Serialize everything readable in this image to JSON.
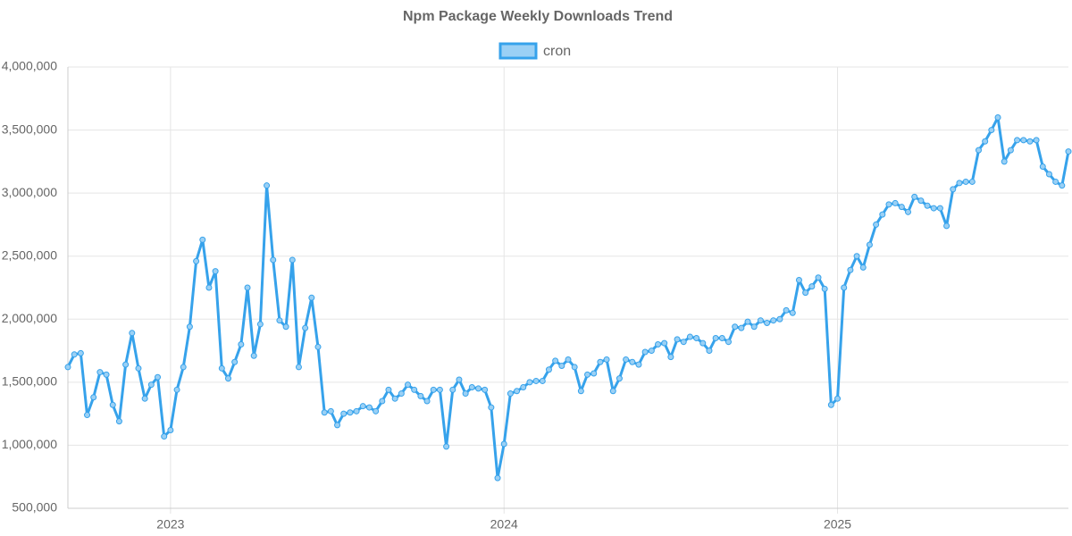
{
  "chart_data": {
    "type": "line",
    "title": "Npm Package Weekly Downloads Trend",
    "categories": [
      null,
      null,
      null,
      null,
      null,
      null,
      null,
      null,
      null,
      null,
      null,
      null,
      null,
      null,
      null,
      null,
      "2023",
      null,
      null,
      null,
      null,
      null,
      null,
      null,
      null,
      null,
      null,
      null,
      null,
      null,
      null,
      null,
      null,
      null,
      null,
      null,
      null,
      null,
      null,
      null,
      null,
      null,
      null,
      null,
      null,
      null,
      null,
      null,
      null,
      null,
      null,
      null,
      null,
      null,
      null,
      null,
      null,
      null,
      null,
      null,
      null,
      null,
      null,
      null,
      null,
      null,
      null,
      null,
      "2024",
      null,
      null,
      null,
      null,
      null,
      null,
      null,
      null,
      null,
      null,
      null,
      null,
      null,
      null,
      null,
      null,
      null,
      null,
      null,
      null,
      null,
      null,
      null,
      null,
      null,
      null,
      null,
      null,
      null,
      null,
      null,
      null,
      null,
      null,
      null,
      null,
      null,
      null,
      null,
      null,
      null,
      null,
      null,
      null,
      null,
      null,
      null,
      null,
      null,
      null,
      null,
      "2025",
      null,
      null,
      null,
      null,
      null,
      null,
      null,
      null,
      null,
      null,
      null,
      null,
      null,
      null,
      null,
      null,
      null,
      null,
      null,
      null,
      null,
      null,
      null,
      null,
      null,
      null,
      null,
      null,
      null,
      null,
      null,
      null,
      null,
      null,
      null,
      null
    ],
    "series": [
      {
        "name": "cron",
        "color": "#36a2eb",
        "values": [
          1620000,
          1720000,
          1730000,
          1240000,
          1380000,
          1580000,
          1560000,
          1320000,
          1190000,
          1640000,
          1890000,
          1610000,
          1370000,
          1480000,
          1540000,
          1070000,
          1120000,
          1440000,
          1620000,
          1940000,
          2460000,
          2630000,
          2250000,
          2380000,
          1610000,
          1530000,
          1660000,
          1800000,
          2250000,
          1710000,
          1960000,
          3060000,
          2470000,
          1990000,
          1940000,
          2470000,
          1620000,
          1930000,
          2170000,
          1780000,
          1260000,
          1270000,
          1160000,
          1250000,
          1260000,
          1270000,
          1310000,
          1300000,
          1270000,
          1350000,
          1440000,
          1370000,
          1410000,
          1480000,
          1440000,
          1390000,
          1350000,
          1440000,
          1440000,
          990000,
          1440000,
          1520000,
          1410000,
          1460000,
          1450000,
          1440000,
          1300000,
          740000,
          1010000,
          1410000,
          1430000,
          1460000,
          1500000,
          1510000,
          1510000,
          1600000,
          1670000,
          1630000,
          1680000,
          1620000,
          1430000,
          1560000,
          1570000,
          1660000,
          1680000,
          1430000,
          1530000,
          1680000,
          1660000,
          1640000,
          1740000,
          1750000,
          1800000,
          1810000,
          1700000,
          1840000,
          1820000,
          1860000,
          1850000,
          1810000,
          1750000,
          1850000,
          1850000,
          1820000,
          1940000,
          1930000,
          1980000,
          1940000,
          1990000,
          1970000,
          1990000,
          2000000,
          2070000,
          2050000,
          2310000,
          2210000,
          2260000,
          2330000,
          2240000,
          1320000,
          1370000,
          2250000,
          2390000,
          2500000,
          2410000,
          2590000,
          2750000,
          2830000,
          2910000,
          2920000,
          2890000,
          2850000,
          2970000,
          2940000,
          2900000,
          2880000,
          2880000,
          2740000,
          3030000,
          3080000,
          3090000,
          3090000,
          3340000,
          3410000,
          3500000,
          3600000,
          3250000,
          3340000,
          3420000,
          3420000,
          3410000,
          3420000,
          3210000,
          3150000,
          3090000,
          3060000,
          3330000
        ]
      }
    ],
    "ylim": [
      500000,
      4000000
    ],
    "yticks": [
      {
        "value": 500000,
        "label": "500,000"
      },
      {
        "value": 1000000,
        "label": "1,000,000"
      },
      {
        "value": 1500000,
        "label": "1,500,000"
      },
      {
        "value": 2000000,
        "label": "2,000,000"
      },
      {
        "value": 2500000,
        "label": "2,500,000"
      },
      {
        "value": 3000000,
        "label": "3,000,000"
      },
      {
        "value": 3500000,
        "label": "3,500,000"
      },
      {
        "value": 4000000,
        "label": "4,000,000"
      }
    ],
    "grid": true,
    "legend": "top"
  }
}
